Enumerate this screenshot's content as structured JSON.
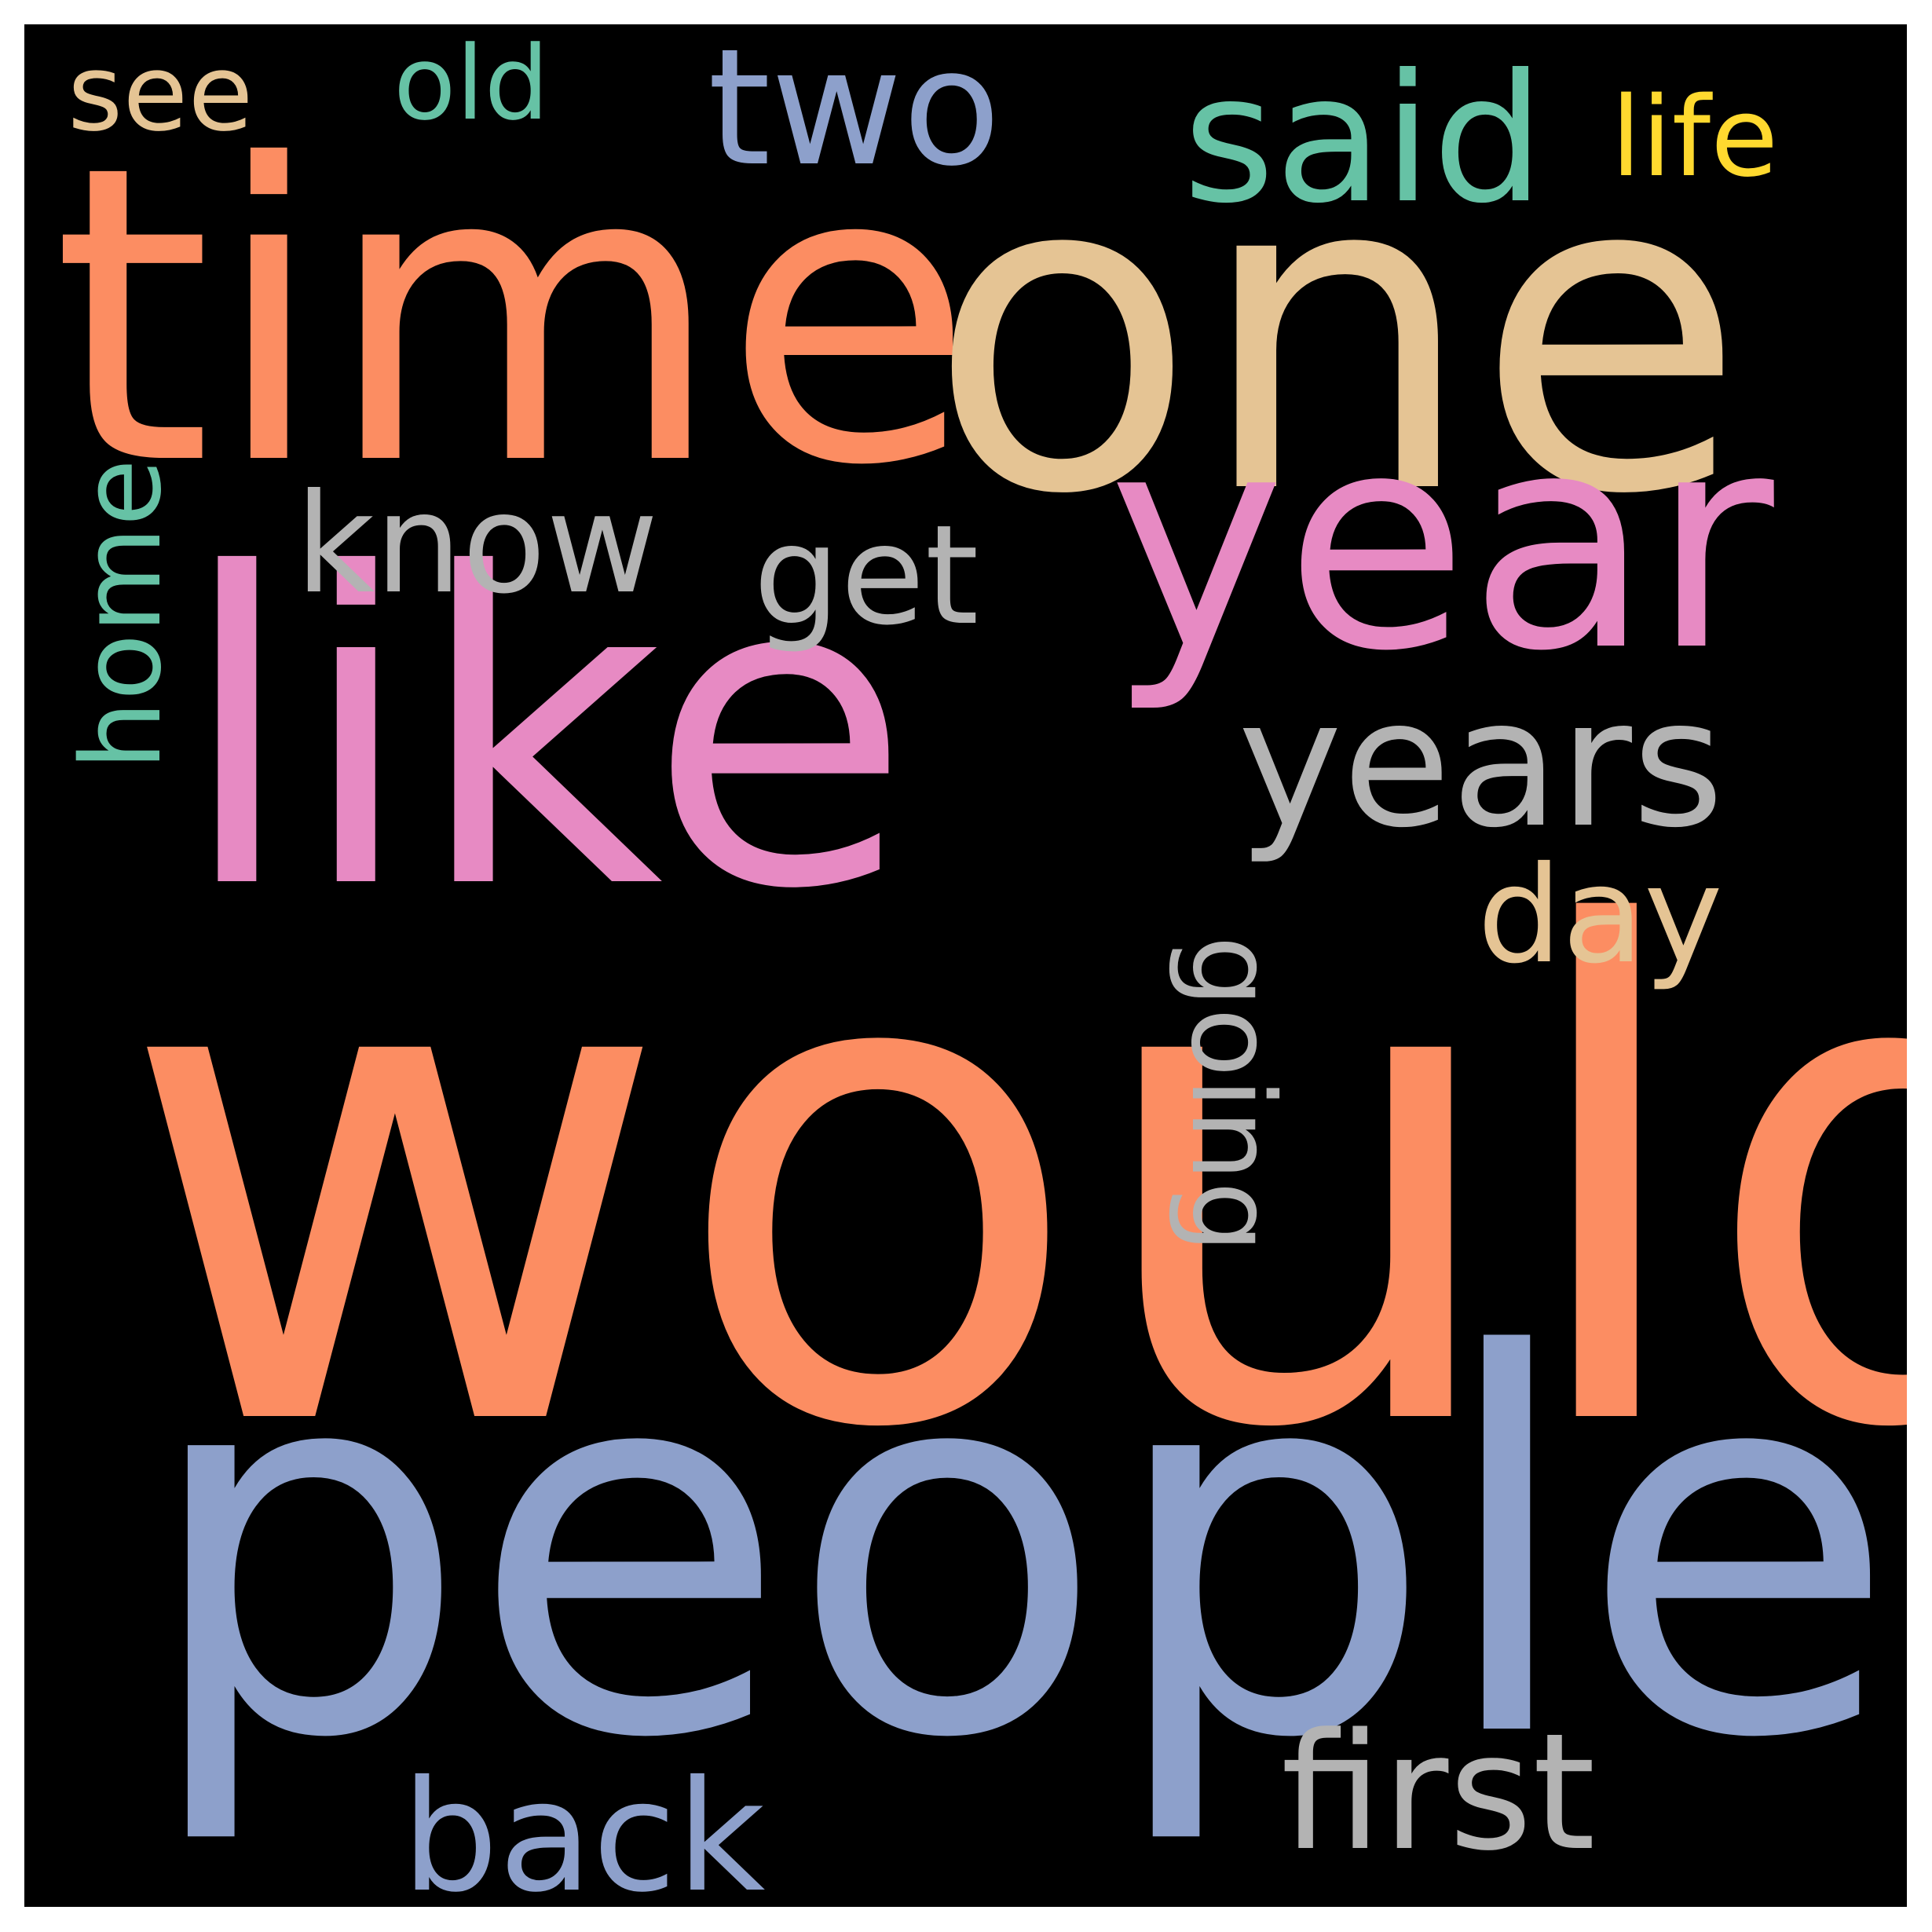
{
  "background_color": "#000000",
  "words": [
    {
      "id": "would",
      "text": "would",
      "color": "#fc8d62"
    },
    {
      "id": "people",
      "text": "people",
      "color": "#8da0cb"
    },
    {
      "id": "time",
      "text": "time",
      "color": "#fc8d62"
    },
    {
      "id": "one",
      "text": "one",
      "color": "#e5c494"
    },
    {
      "id": "like",
      "text": "like",
      "color": "#e78ac3"
    },
    {
      "id": "year",
      "text": "year",
      "color": "#e78ac3"
    },
    {
      "id": "years",
      "text": "years",
      "color": "#b3b3b3"
    },
    {
      "id": "said",
      "text": "said",
      "color": "#66c2a5"
    },
    {
      "id": "two",
      "text": "two",
      "color": "#8da0cb"
    },
    {
      "id": "first",
      "text": "first",
      "color": "#b3b3b3"
    },
    {
      "id": "back",
      "text": "back",
      "color": "#8da0cb"
    },
    {
      "id": "know",
      "text": "know",
      "color": "#b3b3b3"
    },
    {
      "id": "get",
      "text": "get",
      "color": "#b3b3b3"
    },
    {
      "id": "day",
      "text": "day",
      "color": "#e5c494"
    },
    {
      "id": "see",
      "text": "see",
      "color": "#e5c494"
    },
    {
      "id": "old",
      "text": "old",
      "color": "#66c2a5"
    },
    {
      "id": "life",
      "text": "life",
      "color": "#ffd92f"
    },
    {
      "id": "home",
      "text": "home",
      "color": "#66c2a5"
    },
    {
      "id": "going",
      "text": "going",
      "color": "#b3b3b3"
    }
  ]
}
